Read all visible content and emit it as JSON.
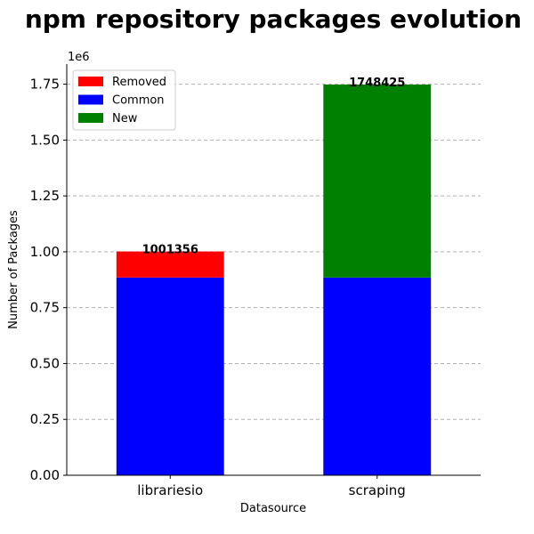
{
  "chart_data": {
    "type": "bar",
    "stacked": true,
    "title": "npm repository packages evolution",
    "xlabel": "Datasource",
    "ylabel": "Number of Packages",
    "y_offset_label": "1e6",
    "categories": [
      "librariesio",
      "scraping"
    ],
    "series": [
      {
        "name": "Common",
        "color": "#0000ff",
        "values": [
          885000,
          885000
        ]
      },
      {
        "name": "Removed",
        "color": "#ff0000",
        "values": [
          116356,
          0
        ]
      },
      {
        "name": "New",
        "color": "#008000",
        "values": [
          0,
          863425
        ]
      }
    ],
    "totals": [
      1001356,
      1748425
    ],
    "total_labels": [
      "1001356",
      "1748425"
    ],
    "ylim": [
      0,
      1840000
    ],
    "yticks": [
      0,
      250000,
      500000,
      750000,
      1000000,
      1250000,
      1500000,
      1750000
    ],
    "ytick_labels": [
      "0.00",
      "0.25",
      "0.50",
      "0.75",
      "1.00",
      "1.25",
      "1.50",
      "1.75"
    ],
    "legend": [
      "Removed",
      "Common",
      "New"
    ],
    "legend_position": "top-left",
    "grid": "horizontal dashed"
  }
}
